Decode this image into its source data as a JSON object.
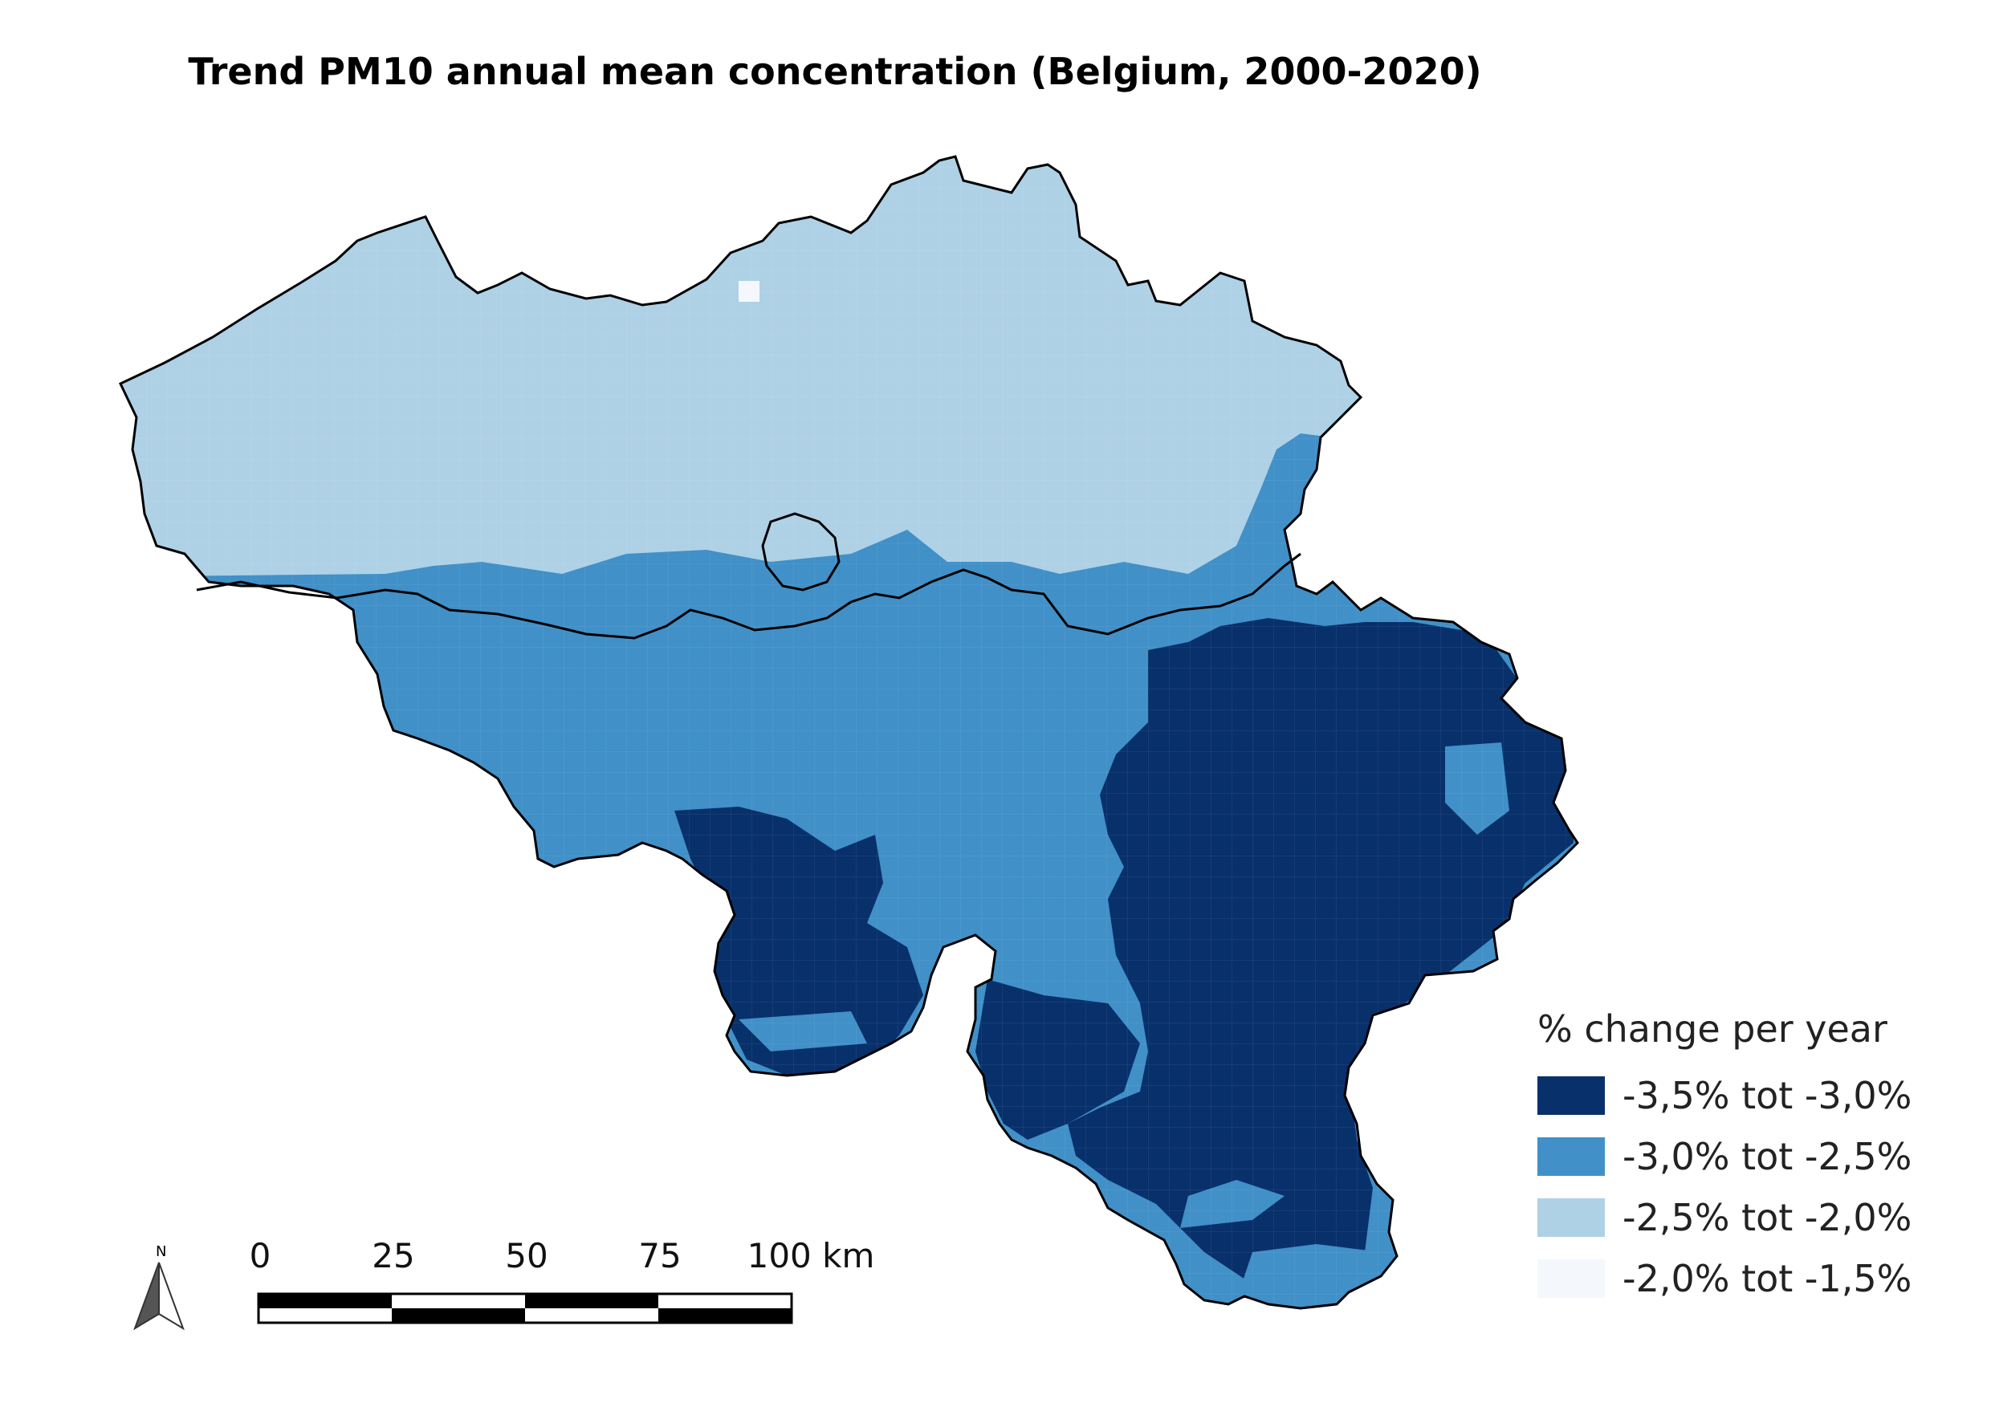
{
  "title": "Trend PM10 annual mean concentration (Belgium, 2000-2020)",
  "legend": {
    "title": "% change per year",
    "items": [
      {
        "label": "-3,5% tot -3,0%",
        "color": "#08306b"
      },
      {
        "label": "-3,0% tot -2,5%",
        "color": "#4190c8"
      },
      {
        "label": "-2,5% tot -2,0%",
        "color": "#aed1e6"
      },
      {
        "label": "-2,0% tot -1,5%",
        "color": "#f4f8fd"
      }
    ]
  },
  "scale_bar": {
    "labels": [
      "0",
      "25",
      "50",
      "75",
      "100 km"
    ]
  },
  "north_arrow": {
    "label": "N",
    "icon": "north-arrow-icon"
  }
}
